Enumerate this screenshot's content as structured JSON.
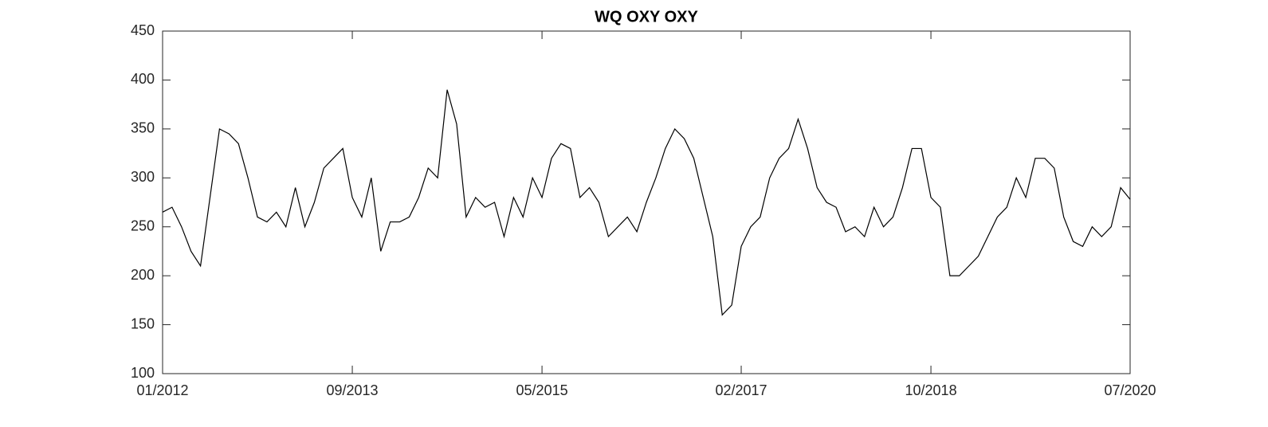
{
  "chart_data": {
    "type": "line",
    "title": "WQ OXY OXY",
    "x": [
      "01/2012",
      "02/2012",
      "03/2012",
      "04/2012",
      "05/2012",
      "06/2012",
      "07/2012",
      "08/2012",
      "09/2012",
      "10/2012",
      "11/2012",
      "12/2012",
      "01/2013",
      "02/2013",
      "03/2013",
      "04/2013",
      "05/2013",
      "06/2013",
      "07/2013",
      "08/2013",
      "09/2013",
      "10/2013",
      "11/2013",
      "12/2013",
      "01/2014",
      "02/2014",
      "03/2014",
      "04/2014",
      "05/2014",
      "06/2014",
      "07/2014",
      "08/2014",
      "09/2014",
      "10/2014",
      "11/2014",
      "12/2014",
      "01/2015",
      "02/2015",
      "03/2015",
      "04/2015",
      "05/2015",
      "06/2015",
      "07/2015",
      "08/2015",
      "09/2015",
      "10/2015",
      "11/2015",
      "12/2015",
      "01/2016",
      "02/2016",
      "03/2016",
      "04/2016",
      "05/2016",
      "06/2016",
      "07/2016",
      "08/2016",
      "09/2016",
      "10/2016",
      "11/2016",
      "12/2016",
      "01/2017",
      "02/2017",
      "03/2017",
      "04/2017",
      "05/2017",
      "06/2017",
      "07/2017",
      "08/2017",
      "09/2017",
      "10/2017",
      "11/2017",
      "12/2017",
      "01/2018",
      "02/2018",
      "03/2018",
      "04/2018",
      "05/2018",
      "06/2018",
      "07/2018",
      "08/2018",
      "09/2018",
      "10/2018",
      "11/2018",
      "12/2018",
      "01/2019",
      "02/2019",
      "03/2019",
      "04/2019",
      "05/2019",
      "06/2019",
      "07/2019",
      "08/2019",
      "09/2019",
      "10/2019",
      "11/2019",
      "12/2019",
      "01/2020",
      "02/2020",
      "03/2020",
      "04/2020",
      "05/2020",
      "06/2020",
      "07/2020"
    ],
    "series": [
      {
        "color": "#000000",
        "values": [
          265,
          270,
          250,
          225,
          210,
          280,
          350,
          345,
          335,
          300,
          260,
          255,
          265,
          250,
          290,
          250,
          275,
          310,
          320,
          330,
          280,
          260,
          300,
          225,
          255,
          255,
          260,
          280,
          310,
          300,
          390,
          355,
          260,
          280,
          270,
          275,
          240,
          280,
          260,
          300,
          280,
          320,
          335,
          330,
          280,
          290,
          275,
          240,
          250,
          260,
          245,
          275,
          300,
          330,
          350,
          340,
          320,
          280,
          240,
          160,
          170,
          230,
          250,
          260,
          300,
          320,
          330,
          360,
          330,
          290,
          275,
          270,
          245,
          250,
          240,
          270,
          250,
          260,
          290,
          330,
          330,
          280,
          270,
          200,
          200,
          210,
          220,
          240,
          260,
          270,
          300,
          280,
          320,
          320,
          310,
          260,
          235,
          230,
          250,
          240,
          250,
          290,
          278
        ]
      }
    ],
    "xlim": [
      "01/2012",
      "07/2020"
    ],
    "xticks": [
      "01/2012",
      "09/2013",
      "05/2015",
      "02/2017",
      "10/2018",
      "07/2020"
    ],
    "ylim": [
      100,
      450
    ],
    "yticks": [
      100,
      150,
      200,
      250,
      300,
      350,
      400,
      450
    ]
  }
}
